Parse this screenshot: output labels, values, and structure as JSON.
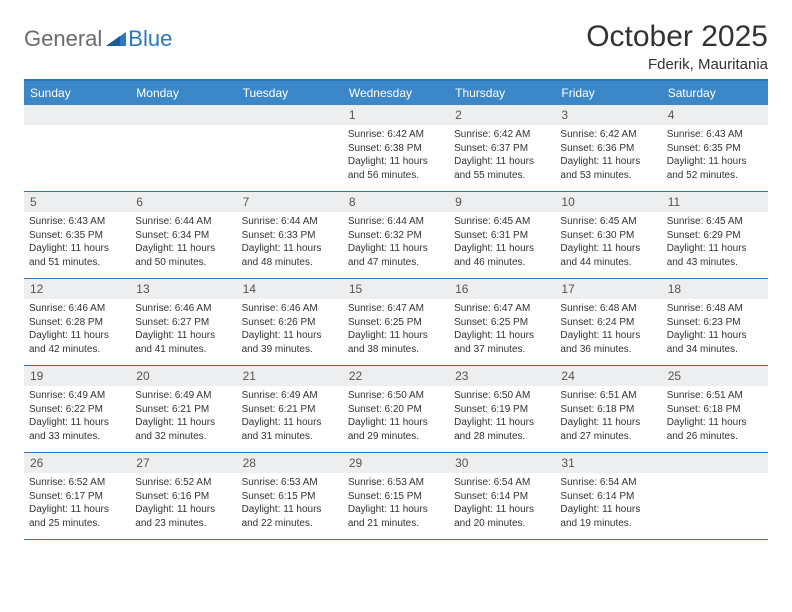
{
  "brand": {
    "general": "General",
    "blue": "Blue"
  },
  "header": {
    "month_title": "October 2025",
    "location": "Fderik, Mauritania"
  },
  "colors": {
    "header_bg": "#3b87c8",
    "border": "#2b77c0",
    "daynum_bg": "#eceeef"
  },
  "day_names": [
    "Sunday",
    "Monday",
    "Tuesday",
    "Wednesday",
    "Thursday",
    "Friday",
    "Saturday"
  ],
  "weeks": [
    [
      {
        "n": "",
        "sr": "",
        "ss": "",
        "dl": ""
      },
      {
        "n": "",
        "sr": "",
        "ss": "",
        "dl": ""
      },
      {
        "n": "",
        "sr": "",
        "ss": "",
        "dl": ""
      },
      {
        "n": "1",
        "sr": "Sunrise: 6:42 AM",
        "ss": "Sunset: 6:38 PM",
        "dl": "Daylight: 11 hours and 56 minutes."
      },
      {
        "n": "2",
        "sr": "Sunrise: 6:42 AM",
        "ss": "Sunset: 6:37 PM",
        "dl": "Daylight: 11 hours and 55 minutes."
      },
      {
        "n": "3",
        "sr": "Sunrise: 6:42 AM",
        "ss": "Sunset: 6:36 PM",
        "dl": "Daylight: 11 hours and 53 minutes."
      },
      {
        "n": "4",
        "sr": "Sunrise: 6:43 AM",
        "ss": "Sunset: 6:35 PM",
        "dl": "Daylight: 11 hours and 52 minutes."
      }
    ],
    [
      {
        "n": "5",
        "sr": "Sunrise: 6:43 AM",
        "ss": "Sunset: 6:35 PM",
        "dl": "Daylight: 11 hours and 51 minutes."
      },
      {
        "n": "6",
        "sr": "Sunrise: 6:44 AM",
        "ss": "Sunset: 6:34 PM",
        "dl": "Daylight: 11 hours and 50 minutes."
      },
      {
        "n": "7",
        "sr": "Sunrise: 6:44 AM",
        "ss": "Sunset: 6:33 PM",
        "dl": "Daylight: 11 hours and 48 minutes."
      },
      {
        "n": "8",
        "sr": "Sunrise: 6:44 AM",
        "ss": "Sunset: 6:32 PM",
        "dl": "Daylight: 11 hours and 47 minutes."
      },
      {
        "n": "9",
        "sr": "Sunrise: 6:45 AM",
        "ss": "Sunset: 6:31 PM",
        "dl": "Daylight: 11 hours and 46 minutes."
      },
      {
        "n": "10",
        "sr": "Sunrise: 6:45 AM",
        "ss": "Sunset: 6:30 PM",
        "dl": "Daylight: 11 hours and 44 minutes."
      },
      {
        "n": "11",
        "sr": "Sunrise: 6:45 AM",
        "ss": "Sunset: 6:29 PM",
        "dl": "Daylight: 11 hours and 43 minutes."
      }
    ],
    [
      {
        "n": "12",
        "sr": "Sunrise: 6:46 AM",
        "ss": "Sunset: 6:28 PM",
        "dl": "Daylight: 11 hours and 42 minutes."
      },
      {
        "n": "13",
        "sr": "Sunrise: 6:46 AM",
        "ss": "Sunset: 6:27 PM",
        "dl": "Daylight: 11 hours and 41 minutes."
      },
      {
        "n": "14",
        "sr": "Sunrise: 6:46 AM",
        "ss": "Sunset: 6:26 PM",
        "dl": "Daylight: 11 hours and 39 minutes."
      },
      {
        "n": "15",
        "sr": "Sunrise: 6:47 AM",
        "ss": "Sunset: 6:25 PM",
        "dl": "Daylight: 11 hours and 38 minutes."
      },
      {
        "n": "16",
        "sr": "Sunrise: 6:47 AM",
        "ss": "Sunset: 6:25 PM",
        "dl": "Daylight: 11 hours and 37 minutes."
      },
      {
        "n": "17",
        "sr": "Sunrise: 6:48 AM",
        "ss": "Sunset: 6:24 PM",
        "dl": "Daylight: 11 hours and 36 minutes."
      },
      {
        "n": "18",
        "sr": "Sunrise: 6:48 AM",
        "ss": "Sunset: 6:23 PM",
        "dl": "Daylight: 11 hours and 34 minutes."
      }
    ],
    [
      {
        "n": "19",
        "sr": "Sunrise: 6:49 AM",
        "ss": "Sunset: 6:22 PM",
        "dl": "Daylight: 11 hours and 33 minutes."
      },
      {
        "n": "20",
        "sr": "Sunrise: 6:49 AM",
        "ss": "Sunset: 6:21 PM",
        "dl": "Daylight: 11 hours and 32 minutes."
      },
      {
        "n": "21",
        "sr": "Sunrise: 6:49 AM",
        "ss": "Sunset: 6:21 PM",
        "dl": "Daylight: 11 hours and 31 minutes."
      },
      {
        "n": "22",
        "sr": "Sunrise: 6:50 AM",
        "ss": "Sunset: 6:20 PM",
        "dl": "Daylight: 11 hours and 29 minutes."
      },
      {
        "n": "23",
        "sr": "Sunrise: 6:50 AM",
        "ss": "Sunset: 6:19 PM",
        "dl": "Daylight: 11 hours and 28 minutes."
      },
      {
        "n": "24",
        "sr": "Sunrise: 6:51 AM",
        "ss": "Sunset: 6:18 PM",
        "dl": "Daylight: 11 hours and 27 minutes."
      },
      {
        "n": "25",
        "sr": "Sunrise: 6:51 AM",
        "ss": "Sunset: 6:18 PM",
        "dl": "Daylight: 11 hours and 26 minutes."
      }
    ],
    [
      {
        "n": "26",
        "sr": "Sunrise: 6:52 AM",
        "ss": "Sunset: 6:17 PM",
        "dl": "Daylight: 11 hours and 25 minutes."
      },
      {
        "n": "27",
        "sr": "Sunrise: 6:52 AM",
        "ss": "Sunset: 6:16 PM",
        "dl": "Daylight: 11 hours and 23 minutes."
      },
      {
        "n": "28",
        "sr": "Sunrise: 6:53 AM",
        "ss": "Sunset: 6:15 PM",
        "dl": "Daylight: 11 hours and 22 minutes."
      },
      {
        "n": "29",
        "sr": "Sunrise: 6:53 AM",
        "ss": "Sunset: 6:15 PM",
        "dl": "Daylight: 11 hours and 21 minutes."
      },
      {
        "n": "30",
        "sr": "Sunrise: 6:54 AM",
        "ss": "Sunset: 6:14 PM",
        "dl": "Daylight: 11 hours and 20 minutes."
      },
      {
        "n": "31",
        "sr": "Sunrise: 6:54 AM",
        "ss": "Sunset: 6:14 PM",
        "dl": "Daylight: 11 hours and 19 minutes."
      },
      {
        "n": "",
        "sr": "",
        "ss": "",
        "dl": ""
      }
    ]
  ]
}
